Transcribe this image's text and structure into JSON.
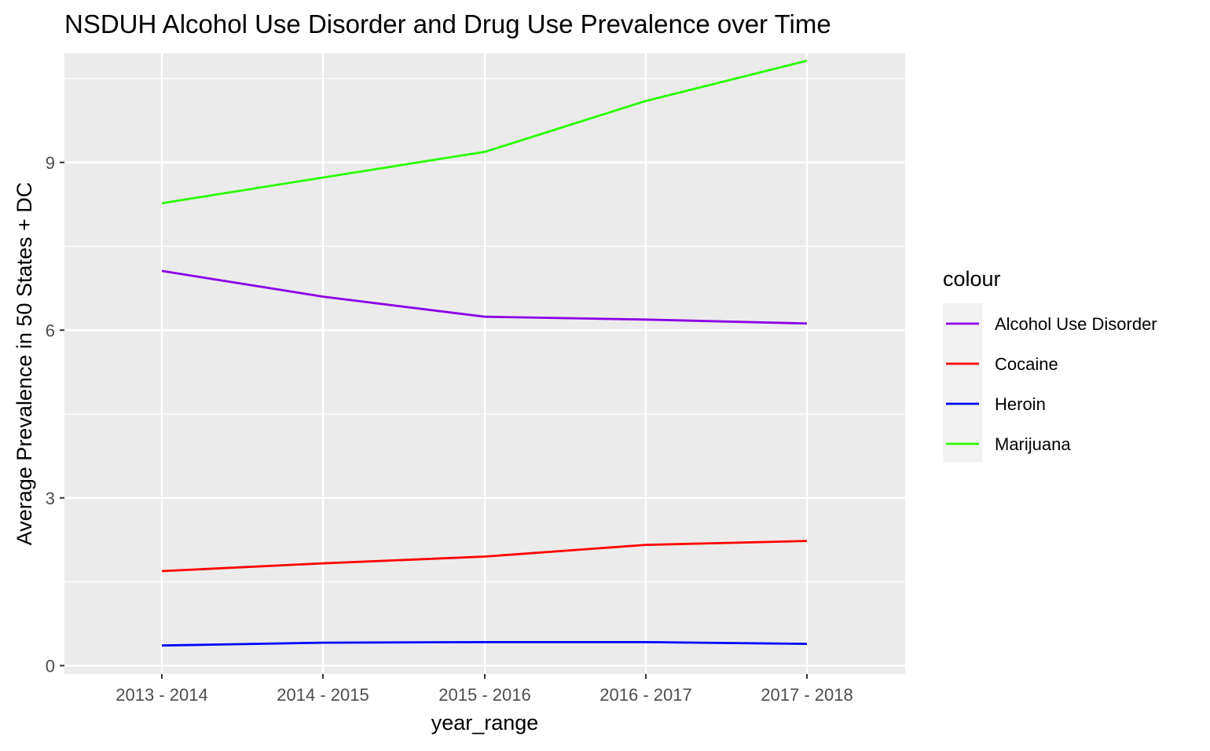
{
  "chart_data": {
    "type": "line",
    "title": "NSDUH Alcohol Use Disorder and Drug Use Prevalence over Time",
    "xlabel": "year_range",
    "ylabel": "Average Prevalence in 50 States + DC",
    "categories": [
      "2013 - 2014",
      "2014 - 2015",
      "2015 - 2016",
      "2016 - 2017",
      "2017 - 2018"
    ],
    "ylim": [
      -0.15,
      10.95
    ],
    "yticks": [
      0,
      3,
      6,
      9
    ],
    "ytick_labels": [
      "0",
      "3",
      "6",
      "9"
    ],
    "grid": true,
    "legend": {
      "title": "colour",
      "position": "right"
    },
    "series": [
      {
        "name": "Alcohol Use Disorder",
        "color": "#8B00E6",
        "values": [
          7.06,
          6.6,
          6.24,
          6.19,
          6.12
        ]
      },
      {
        "name": "Cocaine",
        "color": "#FF0000",
        "values": [
          1.69,
          1.83,
          1.95,
          2.16,
          2.23
        ]
      },
      {
        "name": "Heroin",
        "color": "#0000FF",
        "values": [
          0.36,
          0.41,
          0.42,
          0.42,
          0.39
        ]
      },
      {
        "name": "Marijuana",
        "color": "#2BFF00",
        "values": [
          8.27,
          8.73,
          9.19,
          10.1,
          10.82
        ]
      }
    ]
  }
}
